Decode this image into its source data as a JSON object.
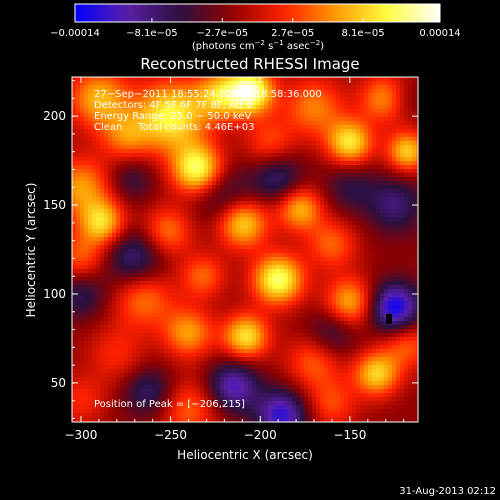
{
  "chart_data": {
    "type": "heatmap",
    "title": "Reconstructed RHESSI Image",
    "xlabel": "Heliocentric X (arcsec)",
    "ylabel": "Heliocentric Y (arcsec)",
    "xlim": [
      -305,
      -112
    ],
    "ylim": [
      28,
      222
    ],
    "xticks": [
      {
        "value": -300,
        "label": "−300"
      },
      {
        "value": -250,
        "label": "−250"
      },
      {
        "value": -200,
        "label": "−200"
      },
      {
        "value": -150,
        "label": "−150"
      }
    ],
    "yticks": [
      {
        "value": 50,
        "label": "50"
      },
      {
        "value": 100,
        "label": "100"
      },
      {
        "value": 150,
        "label": "150"
      },
      {
        "value": 200,
        "label": "200"
      }
    ],
    "colorbar": {
      "range": [
        -0.00014,
        0.00014
      ],
      "ticks": [
        {
          "value": -0.00014,
          "label": "−0.00014"
        },
        {
          "value": -8.1e-05,
          "label": "−8.1e−05"
        },
        {
          "value": -2.7e-05,
          "label": "−2.7e−05"
        },
        {
          "value": 2.7e-05,
          "label": "2.7e−05"
        },
        {
          "value": 8.1e-05,
          "label": "8.1e−05"
        },
        {
          "value": 0.00014,
          "label": "0.00014"
        }
      ],
      "unit_main": "(photons cm",
      "unit_exp1": "−2",
      "unit_mid": " s",
      "unit_exp2": "−1",
      "unit_end": " asec",
      "unit_exp3": "−2",
      "unit_close": ")",
      "colors": [
        "#0000ff",
        "#5a1fa6",
        "#2a1040",
        "#900000",
        "#ff2000",
        "#ff9a00",
        "#ffff40",
        "#ffffff"
      ]
    },
    "annotations": [
      "27−Sep−2011 18:55:24.000 to 18:58:36.000",
      "Detectors: 4F 5F 6F 7F 8F, Att 0",
      "Energy Range: 25.0 − 50.0 keV",
      "Clean     Total counts: 4.46E+03"
    ],
    "peak_label": "Position of Peak = [−206,215]",
    "blobs": [
      {
        "x": -290,
        "y": 210,
        "v": 9e-05,
        "s": 12
      },
      {
        "x": -275,
        "y": 188,
        "v": 6e-05,
        "s": 10
      },
      {
        "x": -250,
        "y": 200,
        "v": 0.00012,
        "s": 14
      },
      {
        "x": -235,
        "y": 170,
        "v": 0.00013,
        "s": 10
      },
      {
        "x": -222,
        "y": 212,
        "v": 9e-05,
        "s": 10
      },
      {
        "x": -205,
        "y": 214,
        "v": 0.00014,
        "s": 9
      },
      {
        "x": -195,
        "y": 185,
        "v": 5e-05,
        "s": 10
      },
      {
        "x": -170,
        "y": 205,
        "v": 7e-05,
        "s": 12
      },
      {
        "x": -150,
        "y": 185,
        "v": 0.00011,
        "s": 9
      },
      {
        "x": -130,
        "y": 210,
        "v": 8e-05,
        "s": 10
      },
      {
        "x": -118,
        "y": 180,
        "v": 0.0001,
        "s": 8
      },
      {
        "x": -300,
        "y": 160,
        "v": 8e-05,
        "s": 12
      },
      {
        "x": -288,
        "y": 140,
        "v": 0.0001,
        "s": 9
      },
      {
        "x": -252,
        "y": 135,
        "v": 7e-05,
        "s": 10
      },
      {
        "x": -210,
        "y": 140,
        "v": 0.00011,
        "s": 10
      },
      {
        "x": -178,
        "y": 148,
        "v": 9e-05,
        "s": 9
      },
      {
        "x": -160,
        "y": 128,
        "v": 6e-05,
        "s": 10
      },
      {
        "x": -300,
        "y": 120,
        "v": 6e-05,
        "s": 10
      },
      {
        "x": -265,
        "y": 98,
        "v": 7e-05,
        "s": 12
      },
      {
        "x": -232,
        "y": 110,
        "v": 6e-05,
        "s": 9
      },
      {
        "x": -190,
        "y": 108,
        "v": 0.00013,
        "s": 10
      },
      {
        "x": -150,
        "y": 95,
        "v": 9e-05,
        "s": 10
      },
      {
        "x": -118,
        "y": 72,
        "v": 6e-05,
        "s": 10
      },
      {
        "x": -280,
        "y": 66,
        "v": 4e-05,
        "s": 12
      },
      {
        "x": -240,
        "y": 78,
        "v": 8e-05,
        "s": 10
      },
      {
        "x": -208,
        "y": 76,
        "v": 0.00011,
        "s": 9
      },
      {
        "x": -170,
        "y": 62,
        "v": 6e-05,
        "s": 11
      },
      {
        "x": -135,
        "y": 55,
        "v": 0.0001,
        "s": 9
      },
      {
        "x": -300,
        "y": 40,
        "v": 4e-05,
        "s": 10
      },
      {
        "x": -240,
        "y": 35,
        "v": 6e-05,
        "s": 12
      },
      {
        "x": -160,
        "y": 38,
        "v": 5e-05,
        "s": 10
      },
      {
        "x": -220,
        "y": 155,
        "v": -5e-05,
        "s": 12
      },
      {
        "x": -270,
        "y": 120,
        "v": -7e-05,
        "s": 12
      },
      {
        "x": -300,
        "y": 100,
        "v": -5e-05,
        "s": 10
      },
      {
        "x": -190,
        "y": 165,
        "v": -6e-05,
        "s": 10
      },
      {
        "x": -150,
        "y": 160,
        "v": -4e-05,
        "s": 10
      },
      {
        "x": -125,
        "y": 150,
        "v": -6e-05,
        "s": 11
      },
      {
        "x": -125,
        "y": 92,
        "v": -0.00012,
        "s": 10
      },
      {
        "x": -160,
        "y": 78,
        "v": -5e-05,
        "s": 10
      },
      {
        "x": -215,
        "y": 48,
        "v": -9e-05,
        "s": 10
      },
      {
        "x": -188,
        "y": 32,
        "v": -0.0001,
        "s": 10
      },
      {
        "x": -262,
        "y": 45,
        "v": -6e-05,
        "s": 10
      },
      {
        "x": -120,
        "y": 210,
        "v": -3e-05,
        "s": 8
      },
      {
        "x": -272,
        "y": 165,
        "v": -4e-05,
        "s": 9
      }
    ]
  },
  "footer": {
    "timestamp": "31-Aug-2013 02:12"
  }
}
